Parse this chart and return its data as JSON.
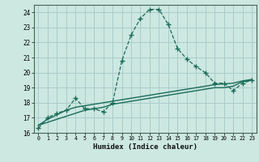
{
  "xlabel": "Humidex (Indice chaleur)",
  "background_color": "#cce8e0",
  "grid_color": "#aacccc",
  "line_color": "#1a6b5a",
  "xlim": [
    -0.5,
    23.5
  ],
  "ylim": [
    16,
    24.5
  ],
  "xticks": [
    0,
    1,
    2,
    3,
    4,
    5,
    6,
    7,
    8,
    9,
    10,
    11,
    12,
    13,
    14,
    15,
    16,
    17,
    18,
    19,
    20,
    21,
    22,
    23
  ],
  "yticks": [
    16,
    17,
    18,
    19,
    20,
    21,
    22,
    23,
    24
  ],
  "series1_x": [
    0,
    1,
    2,
    3,
    4,
    5,
    6,
    7,
    8,
    9,
    10,
    11,
    12,
    13,
    14,
    15,
    16,
    17,
    18,
    19,
    20,
    21,
    22,
    23
  ],
  "series1_y": [
    16.3,
    17.0,
    17.3,
    17.5,
    18.3,
    17.6,
    17.6,
    17.4,
    18.0,
    20.8,
    22.5,
    23.6,
    24.2,
    24.2,
    23.2,
    21.6,
    20.9,
    20.4,
    20.0,
    19.3,
    19.3,
    18.8,
    19.3,
    19.5
  ],
  "series2_x": [
    0,
    1,
    2,
    3,
    4,
    5,
    6,
    7,
    8,
    9,
    10,
    11,
    12,
    13,
    14,
    15,
    16,
    17,
    18,
    19,
    20,
    21,
    22,
    23
  ],
  "series2_y": [
    16.5,
    16.7,
    16.9,
    17.1,
    17.3,
    17.5,
    17.6,
    17.7,
    17.9,
    18.0,
    18.1,
    18.2,
    18.3,
    18.4,
    18.5,
    18.6,
    18.7,
    18.8,
    18.9,
    19.0,
    19.0,
    19.1,
    19.4,
    19.5
  ],
  "series3_x": [
    0,
    1,
    2,
    3,
    4,
    5,
    6,
    7,
    8,
    9,
    10,
    11,
    12,
    13,
    14,
    15,
    16,
    17,
    18,
    19,
    20,
    21,
    22,
    23
  ],
  "series3_y": [
    16.5,
    16.9,
    17.2,
    17.5,
    17.7,
    17.8,
    17.9,
    18.0,
    18.1,
    18.2,
    18.3,
    18.4,
    18.5,
    18.6,
    18.7,
    18.8,
    18.9,
    19.0,
    19.1,
    19.2,
    19.25,
    19.3,
    19.45,
    19.55
  ]
}
